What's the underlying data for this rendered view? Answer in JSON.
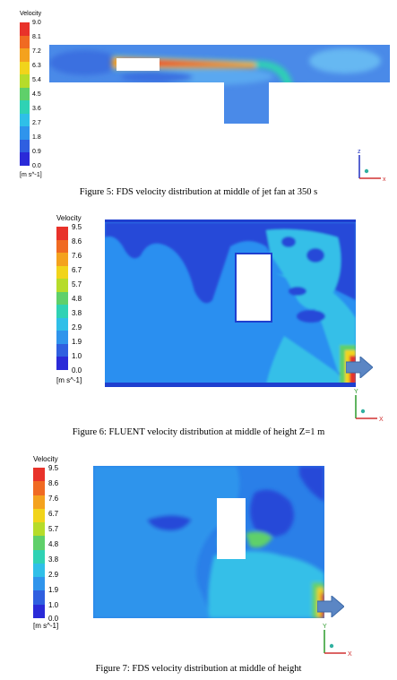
{
  "figures": [
    {
      "legend": {
        "title": "Velocity",
        "ticks": [
          "9.0",
          "8.1",
          "7.2",
          "6.3",
          "5.4",
          "4.5",
          "3.6",
          "2.7",
          "1.8",
          "0.9",
          "0.0"
        ],
        "unit": "[m s^-1]",
        "colors": [
          "#e8322a",
          "#f06a22",
          "#f4a21e",
          "#f1d41b",
          "#b6dc2a",
          "#5fd06a",
          "#2fd2b4",
          "#2fbfe8",
          "#2f94ec",
          "#2f5fe0",
          "#2a2ad8"
        ]
      },
      "axes": {
        "vertical": "z",
        "horizontal": "x"
      },
      "caption": "Figure 5: FDS velocity distribution at middle of jet fan at 350 s"
    },
    {
      "legend": {
        "title": "Velocity",
        "ticks": [
          "9.5",
          "8.6",
          "7.6",
          "6.7",
          "5.7",
          "4.8",
          "3.8",
          "2.9",
          "1.9",
          "1.0",
          "0.0"
        ],
        "unit": "[m s^-1]",
        "colors": [
          "#e8322a",
          "#f06a22",
          "#f4a21e",
          "#f1d41b",
          "#b6dc2a",
          "#5fd06a",
          "#2fd2b4",
          "#2fbfe8",
          "#2f94ec",
          "#2f5fe0",
          "#2a2ad8"
        ]
      },
      "axes": {
        "vertical": "Y",
        "horizontal": "X"
      },
      "caption": "Figure 6: FLUENT velocity distribution at middle of height Z=1 m"
    },
    {
      "legend": {
        "title": "Velocity",
        "ticks": [
          "9.5",
          "8.6",
          "7.6",
          "6.7",
          "5.7",
          "4.8",
          "3.8",
          "2.9",
          "1.9",
          "1.0",
          "0.0"
        ],
        "unit": "[m s^-1]",
        "colors": [
          "#e8322a",
          "#f06a22",
          "#f4a21e",
          "#f1d41b",
          "#b6dc2a",
          "#5fd06a",
          "#2fd2b4",
          "#2fbfe8",
          "#2f94ec",
          "#2f5fe0",
          "#2a2ad8"
        ]
      },
      "axes": {
        "vertical": "Y",
        "horizontal": "X"
      },
      "caption": "Figure 7: FDS velocity distribution at middle of height"
    }
  ]
}
